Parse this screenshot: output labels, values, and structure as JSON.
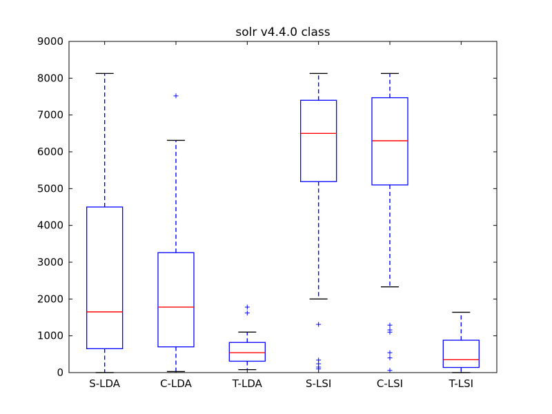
{
  "chart_data": {
    "type": "box",
    "title": "solr v4.4.0 class",
    "xlabel": "",
    "ylabel": "",
    "ylim": [
      0,
      9000
    ],
    "yticks": [
      0,
      1000,
      2000,
      3000,
      4000,
      5000,
      6000,
      7000,
      8000,
      9000
    ],
    "categories": [
      "S-LDA",
      "C-LDA",
      "T-LDA",
      "S-LSI",
      "C-LSI",
      "T-LSI"
    ],
    "boxes": [
      {
        "label": "S-LDA",
        "whisker_low": 0,
        "q1": 650,
        "median": 1650,
        "q3": 4500,
        "whisker_high": 8130,
        "outliers": []
      },
      {
        "label": "C-LDA",
        "whisker_low": 30,
        "q1": 700,
        "median": 1780,
        "q3": 3260,
        "whisker_high": 6310,
        "outliers": [
          7520
        ]
      },
      {
        "label": "T-LDA",
        "whisker_low": 80,
        "q1": 310,
        "median": 540,
        "q3": 820,
        "whisker_high": 1100,
        "outliers": [
          1620,
          1780
        ]
      },
      {
        "label": "S-LSI",
        "whisker_low": 2000,
        "q1": 5190,
        "median": 6500,
        "q3": 7400,
        "whisker_high": 8130,
        "outliers": [
          1310,
          340,
          240,
          150,
          100
        ]
      },
      {
        "label": "C-LSI",
        "whisker_low": 2330,
        "q1": 5100,
        "median": 6300,
        "q3": 7470,
        "whisker_high": 8130,
        "outliers": [
          1290,
          1160,
          1100,
          540,
          400,
          60
        ]
      },
      {
        "label": "T-LSI",
        "whisker_low": 0,
        "q1": 140,
        "median": 350,
        "q3": 880,
        "whisker_high": 1640,
        "outliers": []
      }
    ],
    "grid": false,
    "colors": {
      "box": "#0000ff",
      "median": "#ff0000",
      "whisker": "#0000ff",
      "cap": "#000000",
      "outlier": "#0000ff"
    }
  }
}
